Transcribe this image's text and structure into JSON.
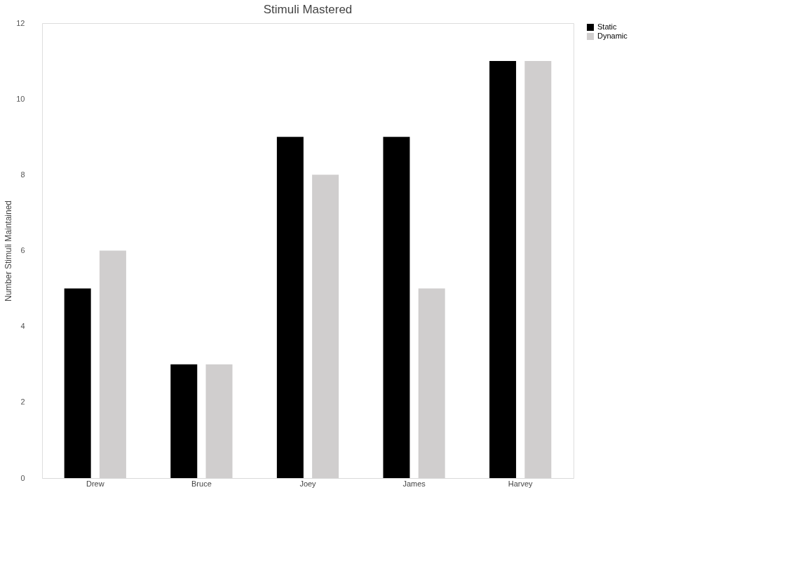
{
  "chart_data": {
    "type": "bar",
    "title": "Stimuli Mastered",
    "ylabel": "Number Stimuli Maintained",
    "categories": [
      "Drew",
      "Bruce",
      "Joey",
      "James",
      "Harvey"
    ],
    "series": [
      {
        "name": "Static",
        "color": "#000000",
        "values": [
          5,
          3,
          9,
          9,
          11
        ]
      },
      {
        "name": "Dynamic",
        "color": "#d0cece",
        "values": [
          6,
          3,
          8,
          5,
          11
        ]
      }
    ],
    "ylim": [
      0,
      12
    ],
    "yticks": [
      0,
      2,
      4,
      6,
      8,
      10,
      12
    ],
    "grid": false,
    "legend": "right"
  }
}
